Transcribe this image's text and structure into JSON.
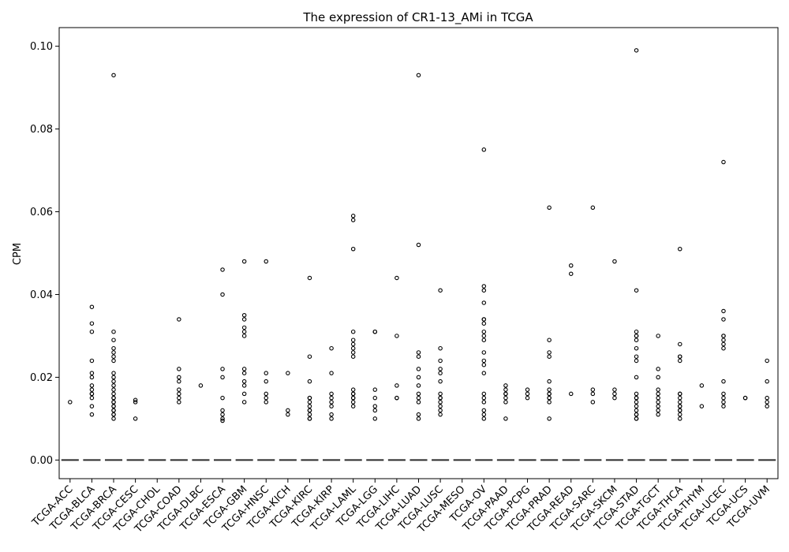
{
  "chart_data": {
    "type": "box",
    "title": "The expression of CR1-13_AMi in TCGA",
    "xlabel": "",
    "ylabel": "CPM",
    "ylim": [
      -0.0045,
      0.1045
    ],
    "yticks": [
      0.0,
      0.02,
      0.04,
      0.06,
      0.08,
      0.1
    ],
    "ytick_labels": [
      "0.00",
      "0.02",
      "0.04",
      "0.06",
      "0.08",
      "0.10"
    ],
    "grid": false,
    "median_color": "#2a2a2a",
    "box_value": 0.0,
    "categories": [
      "TCGA-ACC",
      "TCGA-BLCA",
      "TCGA-BRCA",
      "TCGA-CESC",
      "TCGA-CHOL",
      "TCGA-COAD",
      "TCGA-DLBC",
      "TCGA-ESCA",
      "TCGA-GBM",
      "TCGA-HNSC",
      "TCGA-KICH",
      "TCGA-KIRC",
      "TCGA-KIRP",
      "TCGA-LAML",
      "TCGA-LGG",
      "TCGA-LIHC",
      "TCGA-LUAD",
      "TCGA-LUSC",
      "TCGA-MESO",
      "TCGA-OV",
      "TCGA-PAAD",
      "TCGA-PCPG",
      "TCGA-PRAD",
      "TCGA-READ",
      "TCGA-SARC",
      "TCGA-SKCM",
      "TCGA-STAD",
      "TCGA-TGCT",
      "TCGA-THCA",
      "TCGA-THYM",
      "TCGA-UCEC",
      "TCGA-UCS",
      "TCGA-UVM"
    ],
    "outliers": [
      [
        0.014
      ],
      [
        0.037,
        0.033,
        0.031,
        0.024,
        0.021,
        0.02,
        0.018,
        0.017,
        0.016,
        0.016,
        0.015,
        0.013,
        0.011
      ],
      [
        0.093,
        0.031,
        0.029,
        0.027,
        0.026,
        0.025,
        0.024,
        0.021,
        0.02,
        0.019,
        0.018,
        0.017,
        0.016,
        0.015,
        0.015,
        0.014,
        0.014,
        0.013,
        0.013,
        0.012,
        0.012,
        0.011,
        0.011,
        0.01
      ],
      [
        0.0145,
        0.014,
        0.01
      ],
      [],
      [
        0.034,
        0.022,
        0.02,
        0.019,
        0.017,
        0.016,
        0.015,
        0.014
      ],
      [
        0.018
      ],
      [
        0.046,
        0.04,
        0.022,
        0.02,
        0.015,
        0.012,
        0.011,
        0.01,
        0.0095
      ],
      [
        0.048,
        0.035,
        0.034,
        0.032,
        0.031,
        0.03,
        0.022,
        0.021,
        0.019,
        0.018,
        0.016,
        0.014
      ],
      [
        0.048,
        0.021,
        0.019,
        0.016,
        0.015,
        0.014
      ],
      [
        0.021,
        0.012,
        0.011
      ],
      [
        0.044,
        0.025,
        0.019,
        0.015,
        0.015,
        0.014,
        0.013,
        0.012,
        0.012,
        0.011,
        0.01,
        0.01
      ],
      [
        0.027,
        0.021,
        0.016,
        0.015,
        0.014,
        0.013,
        0.011,
        0.01
      ],
      [
        0.059,
        0.058,
        0.051,
        0.031,
        0.029,
        0.028,
        0.027,
        0.026,
        0.025,
        0.017,
        0.016,
        0.016,
        0.015,
        0.015,
        0.014,
        0.013
      ],
      [
        0.031,
        0.031,
        0.017,
        0.015,
        0.013,
        0.012,
        0.01
      ],
      [
        0.044,
        0.03,
        0.018,
        0.015,
        0.015
      ],
      [
        0.093,
        0.052,
        0.026,
        0.025,
        0.022,
        0.02,
        0.018,
        0.016,
        0.015,
        0.014,
        0.011,
        0.01
      ],
      [
        0.041,
        0.027,
        0.024,
        0.022,
        0.021,
        0.019,
        0.016,
        0.015,
        0.015,
        0.014,
        0.013,
        0.012,
        0.011
      ],
      [],
      [
        0.075,
        0.042,
        0.041,
        0.038,
        0.034,
        0.034,
        0.033,
        0.031,
        0.03,
        0.029,
        0.026,
        0.024,
        0.023,
        0.021,
        0.016,
        0.015,
        0.014,
        0.012,
        0.011,
        0.01
      ],
      [
        0.018,
        0.017,
        0.016,
        0.016,
        0.015,
        0.014,
        0.01
      ],
      [
        0.017,
        0.016,
        0.015
      ],
      [
        0.061,
        0.029,
        0.026,
        0.025,
        0.019,
        0.017,
        0.016,
        0.016,
        0.015,
        0.015,
        0.014,
        0.01
      ],
      [
        0.047,
        0.045,
        0.016
      ],
      [
        0.061,
        0.017,
        0.016,
        0.014
      ],
      [
        0.048,
        0.017,
        0.016,
        0.015
      ],
      [
        0.099,
        0.041,
        0.031,
        0.03,
        0.03,
        0.029,
        0.027,
        0.025,
        0.024,
        0.02,
        0.016,
        0.015,
        0.015,
        0.014,
        0.013,
        0.012,
        0.011,
        0.011,
        0.01,
        0.01
      ],
      [
        0.03,
        0.022,
        0.02,
        0.017,
        0.016,
        0.015,
        0.014,
        0.013,
        0.012,
        0.011
      ],
      [
        0.051,
        0.028,
        0.025,
        0.025,
        0.024,
        0.016,
        0.016,
        0.015,
        0.014,
        0.013,
        0.013,
        0.012,
        0.012,
        0.011,
        0.01
      ],
      [
        0.018,
        0.013
      ],
      [
        0.072,
        0.036,
        0.034,
        0.03,
        0.03,
        0.029,
        0.028,
        0.027,
        0.019,
        0.016,
        0.015,
        0.014,
        0.013
      ],
      [
        0.015,
        0.015
      ],
      [
        0.024,
        0.019,
        0.015,
        0.014,
        0.013
      ]
    ]
  }
}
